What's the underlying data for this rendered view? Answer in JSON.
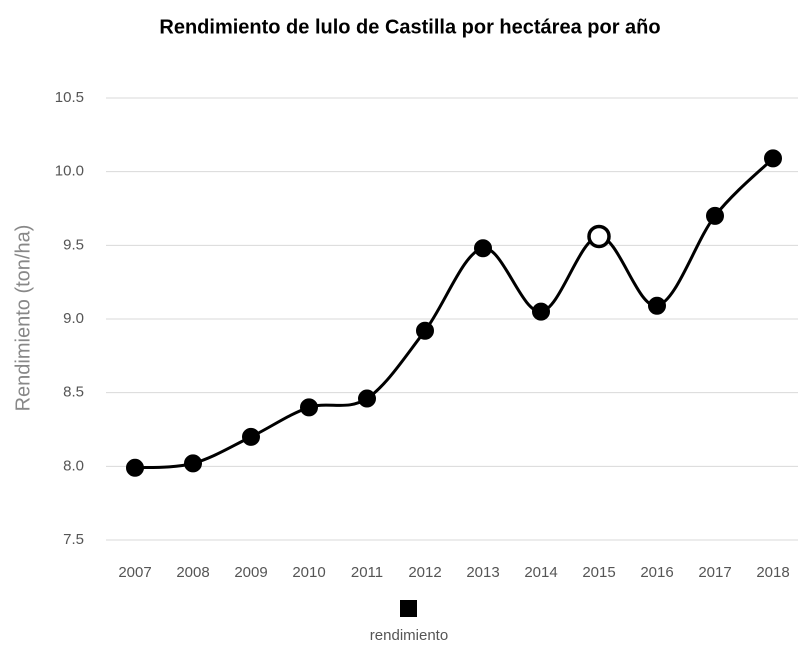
{
  "chart_data": {
    "type": "line",
    "title": "Rendimiento de lulo de Castilla por hectárea por año",
    "y_label": "Rendimiento (ton/ha)",
    "categories": [
      "2007",
      "2008",
      "2009",
      "2010",
      "2011",
      "2012",
      "2013",
      "2014",
      "2015",
      "2016",
      "2017",
      "2018"
    ],
    "series": [
      {
        "name": "rendimiento",
        "color": "#000000",
        "values": [
          7.99,
          8.02,
          8.2,
          8.4,
          8.46,
          8.92,
          9.48,
          9.05,
          9.56,
          9.09,
          9.7,
          10.09
        ]
      }
    ],
    "open_marker_index": 8,
    "ylim": [
      7.5,
      10.5
    ],
    "yticks": [
      7.5,
      {
        "value": 8,
        "label": "8.0"
      },
      8.5,
      {
        "value": 9,
        "label": "9.0"
      },
      9.5,
      {
        "value": 10,
        "label": "10.0"
      },
      10.5
    ],
    "grid": true,
    "smooth": true,
    "legend": "bottom"
  }
}
